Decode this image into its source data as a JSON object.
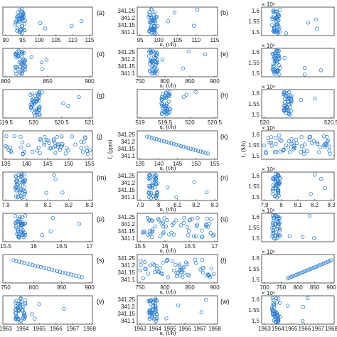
{
  "figure": {
    "panel_labels": [
      "(a)",
      "(b)",
      "(d)",
      "(e)",
      "(g)",
      "(h)",
      "(j)",
      "(k)",
      "(m)",
      "(n)",
      "(p)",
      "(q)",
      "(s)",
      "(t)",
      "(v)",
      "(w)"
    ],
    "axis_labels": {
      "middle_x": "u₁ (t/h)",
      "middle_y_row4": "f₂ (ppm)",
      "right_y_row4": "f₃ ($/h)",
      "right_multiplier": "× 10⁶"
    },
    "colors": {
      "marker": "#2f7fd0",
      "axes": "#333333"
    }
  },
  "chart_data": [
    {
      "id": "a",
      "type": "scatter",
      "xticks": [
        "90",
        "95",
        "100",
        "105",
        "110",
        "115"
      ],
      "xlim": [
        90,
        115
      ],
      "ylim": [
        0,
        1
      ]
    },
    {
      "id": "b",
      "type": "scatter",
      "yticks": [
        "341.25",
        "341.2",
        "341.15",
        "341.1"
      ],
      "ylim": [
        341.08,
        341.28
      ],
      "xticks": [
        "95",
        "100",
        "105",
        "110",
        "115"
      ],
      "xlim": [
        90,
        115
      ]
    },
    {
      "id": "c",
      "type": "scatter",
      "yticks": [
        "1.6",
        "1.55",
        "1.5"
      ],
      "ylim": [
        1.49,
        1.63
      ],
      "multiplier": "10^6"
    },
    {
      "id": "d",
      "type": "scatter",
      "xticks": [
        "800",
        "850",
        "900"
      ],
      "xlim": [
        760,
        910
      ],
      "ylim": [
        0,
        1
      ]
    },
    {
      "id": "e",
      "type": "scatter",
      "yticks": [
        "341.25",
        "341.2",
        "341.15",
        "341.1"
      ],
      "ylim": [
        341.08,
        341.28
      ],
      "xticks": [
        "750",
        "800",
        "850",
        "900"
      ],
      "xlim": [
        750,
        910
      ]
    },
    {
      "id": "f",
      "type": "scatter",
      "yticks": [
        "1.6",
        "1.55",
        "1.5"
      ],
      "ylim": [
        1.49,
        1.63
      ],
      "multiplier": "10^6"
    },
    {
      "id": "g",
      "type": "scatter",
      "xticks": [
        "519.5",
        "520",
        "520.5",
        "521"
      ],
      "xlim": [
        519.2,
        521
      ],
      "ylim": [
        0,
        1
      ]
    },
    {
      "id": "h",
      "type": "scatter",
      "xticks": [
        "519",
        "519.5",
        "520",
        "520.5"
      ],
      "xlim": [
        519,
        520.7
      ],
      "ylim": [
        0,
        1
      ]
    },
    {
      "id": "i",
      "type": "scatter",
      "yticks": [
        "1.6",
        "1.55",
        "1.5"
      ],
      "xticks": [
        "520",
        "520.5"
      ],
      "ylim": [
        1.49,
        1.63
      ],
      "multiplier": "10^6"
    },
    {
      "id": "j",
      "type": "scatter",
      "xticks": [
        "135",
        "140",
        "145",
        "150",
        "155"
      ],
      "xlim": [
        135,
        155
      ],
      "ylim": [
        0,
        1
      ]
    },
    {
      "id": "k",
      "type": "scatter",
      "yticks": [
        "341.25",
        "341.2",
        "341.15",
        "341.1"
      ],
      "ylim": [
        341.08,
        341.28
      ],
      "xticks": [
        "135",
        "140",
        "145",
        "150",
        "155"
      ],
      "xlim": [
        135,
        155
      ]
    },
    {
      "id": "l",
      "type": "scatter",
      "yticks": [
        "1.6",
        "1.55",
        "1.5"
      ],
      "ylim": [
        1.49,
        1.63
      ],
      "multiplier": "10^6"
    },
    {
      "id": "m",
      "type": "scatter",
      "xticks": [
        "7.9",
        "8",
        "8.1",
        "8.2",
        "8.3"
      ],
      "xlim": [
        7.9,
        8.33
      ],
      "ylim": [
        0,
        1
      ]
    },
    {
      "id": "n",
      "type": "scatter",
      "yticks": [
        "341.25",
        "341.2",
        "341.15",
        "341.1"
      ],
      "ylim": [
        341.08,
        341.28
      ],
      "xticks": [
        "7.9",
        "8",
        "8.1",
        "8.2",
        "8.3"
      ],
      "xlim": [
        7.9,
        8.33
      ]
    },
    {
      "id": "o",
      "type": "scatter",
      "yticks": [
        "1.6",
        "1.55",
        "1.5"
      ],
      "xticks": [
        "7.9",
        "8",
        "8.1",
        "8.2",
        "8.3"
      ],
      "ylim": [
        1.49,
        1.63
      ],
      "multiplier": "10^6"
    },
    {
      "id": "p",
      "type": "scatter",
      "xticks": [
        "15.5",
        "16",
        "16.5",
        "17"
      ],
      "xlim": [
        15.5,
        17
      ],
      "ylim": [
        0,
        1
      ]
    },
    {
      "id": "q",
      "type": "scatter",
      "yticks": [
        "341.25",
        "341.2",
        "341.15",
        "341.1"
      ],
      "ylim": [
        341.08,
        341.28
      ],
      "xticks": [
        "15.5",
        "16",
        "16.5",
        "17"
      ],
      "xlim": [
        15.5,
        17
      ]
    },
    {
      "id": "r",
      "type": "scatter",
      "yticks": [
        "1.6",
        "1.55",
        "1.5"
      ],
      "ylim": [
        1.49,
        1.63
      ],
      "multiplier": "10^6"
    },
    {
      "id": "s",
      "type": "scatter",
      "xticks": [
        "750",
        "800",
        "850",
        "900"
      ],
      "xlim": [
        720,
        920
      ],
      "ylim": [
        0,
        1
      ]
    },
    {
      "id": "t",
      "type": "scatter",
      "yticks": [
        "341.25",
        "341.2",
        "341.15",
        "341.1"
      ],
      "ylim": [
        341.08,
        341.28
      ],
      "xticks": [
        "750",
        "800",
        "850",
        "900"
      ],
      "xlim": [
        720,
        920
      ]
    },
    {
      "id": "u",
      "type": "scatter",
      "yticks": [
        "1.6",
        "1.55",
        "1.5"
      ],
      "xticks": [
        "700",
        "750",
        "800",
        "850",
        "900"
      ],
      "xlim": [
        700,
        920
      ],
      "ylim": [
        1.49,
        1.63
      ],
      "multiplier": "10^6"
    },
    {
      "id": "v",
      "type": "scatter",
      "xticks": [
        "1963",
        "1964",
        "1965",
        "1966",
        "1967",
        "1968"
      ],
      "xlim": [
        1963,
        1968
      ],
      "ylim": [
        0,
        1
      ]
    },
    {
      "id": "w",
      "type": "scatter",
      "yticks": [
        "341.25",
        "341.2",
        "341.15",
        "341.1"
      ],
      "ylim": [
        341.08,
        341.28
      ],
      "xticks": [
        "1963",
        "1964",
        "1965",
        "1966",
        "1967",
        "1968"
      ],
      "xlim": [
        1963,
        1968
      ]
    },
    {
      "id": "x",
      "type": "scatter",
      "yticks": [
        "1.6",
        "1.55",
        "1.5"
      ],
      "xticks": [
        "1963",
        "1964",
        "1965",
        "1966",
        "1967",
        "1968"
      ],
      "xlim": [
        1963,
        1968
      ],
      "ylim": [
        1.49,
        1.63
      ],
      "multiplier": "10^6"
    }
  ]
}
